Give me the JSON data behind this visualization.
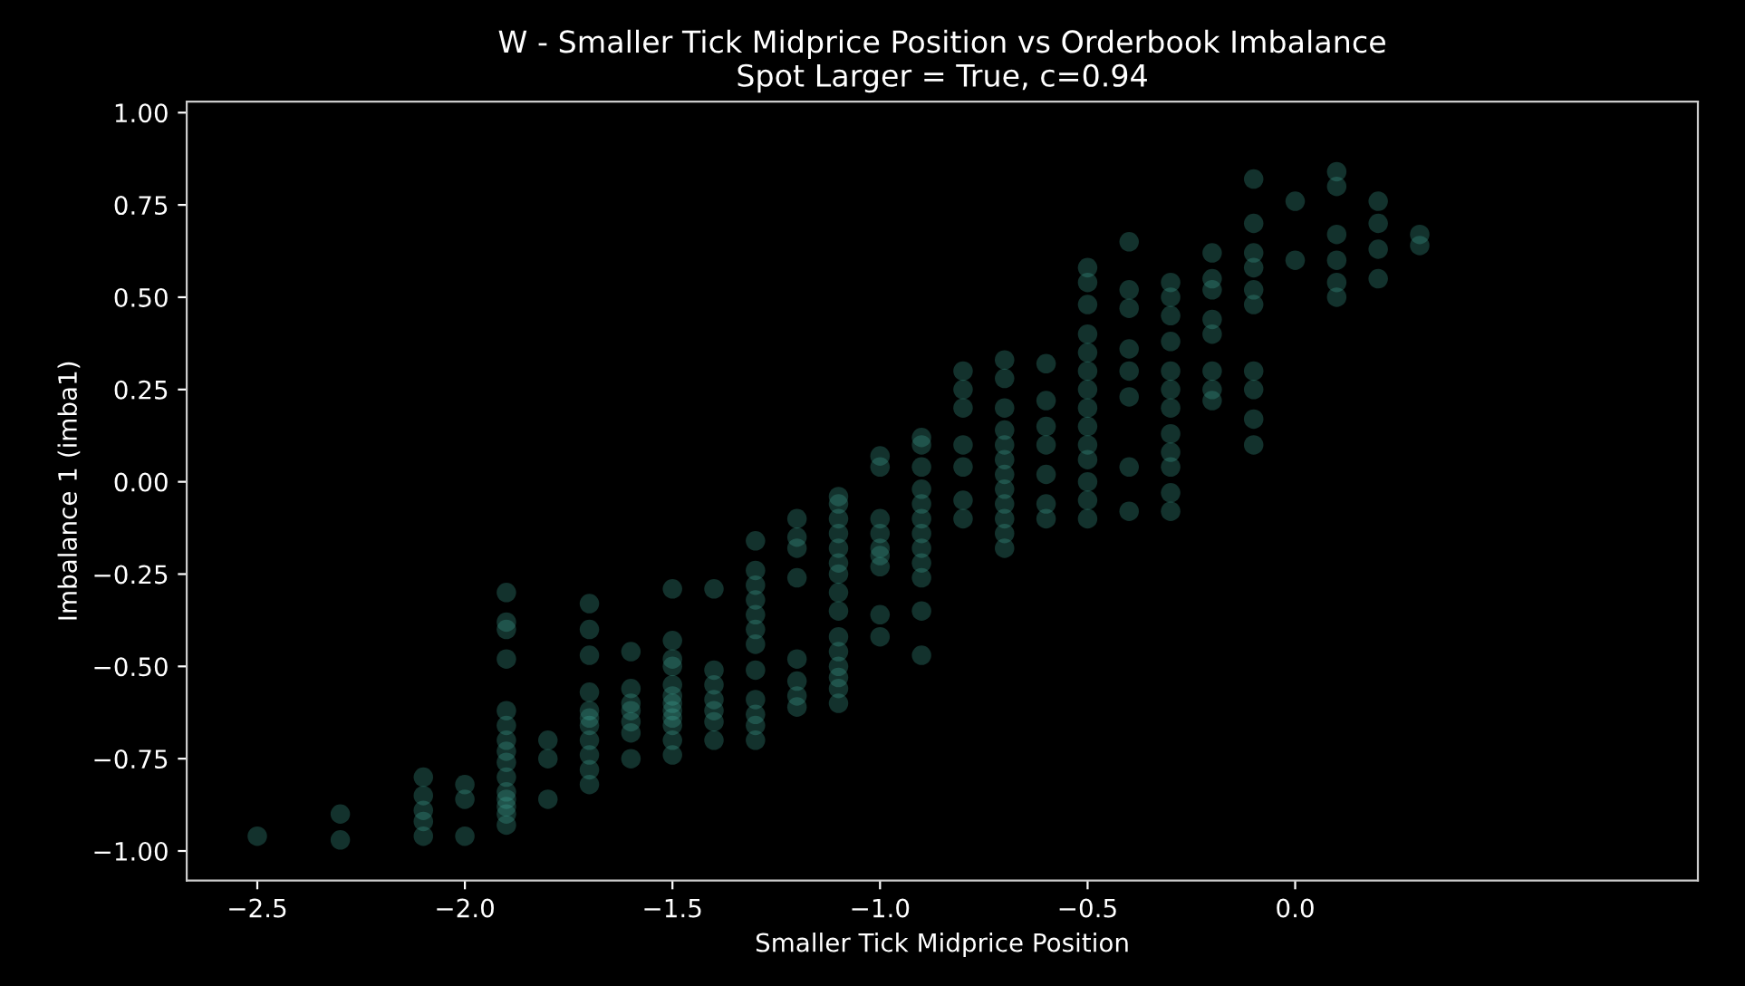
{
  "chart_data": {
    "type": "scatter",
    "title": "W - Smaller Tick Midprice Position vs Orderbook Imbalance",
    "subtitle": "Spot Larger = True, c=0.94",
    "xlabel": "Smaller Tick Midprice Position",
    "ylabel": "Imbalance 1 (imba1)",
    "xlim": [
      -2.67,
      0.97
    ],
    "ylim": [
      -1.08,
      1.03
    ],
    "xticks": [
      {
        "value": -2.5,
        "label": "−2.5"
      },
      {
        "value": -2.0,
        "label": "−2.0"
      },
      {
        "value": -1.5,
        "label": "−1.5"
      },
      {
        "value": -1.0,
        "label": "−1.0"
      },
      {
        "value": -0.5,
        "label": "−0.5"
      },
      {
        "value": 0.0,
        "label": "0.0"
      }
    ],
    "yticks": [
      {
        "value": -1.0,
        "label": "−1.00"
      },
      {
        "value": -0.75,
        "label": "−0.75"
      },
      {
        "value": -0.5,
        "label": "−0.50"
      },
      {
        "value": -0.25,
        "label": "−0.25"
      },
      {
        "value": 0.0,
        "label": "0.00"
      },
      {
        "value": 0.25,
        "label": "0.25"
      },
      {
        "value": 0.5,
        "label": "0.50"
      },
      {
        "value": 0.75,
        "label": "0.75"
      },
      {
        "value": 1.0,
        "label": "1.00"
      }
    ],
    "grid": false,
    "legend": false,
    "marker": "circle",
    "series": [
      {
        "color": "#3fa796",
        "x": [
          -2.5,
          -2.3,
          -2.3,
          -2.1,
          -2.1,
          -2.1,
          -2.1,
          -2.1,
          -2.0,
          -2.0,
          -2.0,
          -1.9,
          -1.9,
          -1.9,
          -1.9,
          -1.9,
          -1.9,
          -1.9,
          -1.9,
          -1.9,
          -1.9,
          -1.9,
          -1.9,
          -1.9,
          -1.9,
          -1.9,
          -1.8,
          -1.8,
          -1.8,
          -1.7,
          -1.7,
          -1.7,
          -1.7,
          -1.7,
          -1.7,
          -1.7,
          -1.7,
          -1.7,
          -1.7,
          -1.7,
          -1.6,
          -1.6,
          -1.6,
          -1.6,
          -1.6,
          -1.6,
          -1.6,
          -1.5,
          -1.5,
          -1.5,
          -1.5,
          -1.5,
          -1.5,
          -1.5,
          -1.5,
          -1.5,
          -1.5,
          -1.5,
          -1.5,
          -1.4,
          -1.4,
          -1.4,
          -1.4,
          -1.4,
          -1.4,
          -1.4,
          -1.3,
          -1.3,
          -1.3,
          -1.3,
          -1.3,
          -1.3,
          -1.3,
          -1.3,
          -1.3,
          -1.3,
          -1.3,
          -1.3,
          -1.2,
          -1.2,
          -1.2,
          -1.2,
          -1.2,
          -1.2,
          -1.2,
          -1.2,
          -1.1,
          -1.1,
          -1.1,
          -1.1,
          -1.1,
          -1.1,
          -1.1,
          -1.1,
          -1.1,
          -1.1,
          -1.1,
          -1.1,
          -1.1,
          -1.1,
          -1.1,
          -1.0,
          -1.0,
          -1.0,
          -1.0,
          -1.0,
          -1.0,
          -1.0,
          -1.0,
          -1.0,
          -0.9,
          -0.9,
          -0.9,
          -0.9,
          -0.9,
          -0.9,
          -0.9,
          -0.9,
          -0.9,
          -0.9,
          -0.9,
          -0.9,
          -0.8,
          -0.8,
          -0.8,
          -0.8,
          -0.8,
          -0.8,
          -0.8,
          -0.7,
          -0.7,
          -0.7,
          -0.7,
          -0.7,
          -0.7,
          -0.7,
          -0.7,
          -0.7,
          -0.7,
          -0.7,
          -0.7,
          -0.6,
          -0.6,
          -0.6,
          -0.6,
          -0.6,
          -0.6,
          -0.6,
          -0.5,
          -0.5,
          -0.5,
          -0.5,
          -0.5,
          -0.5,
          -0.5,
          -0.5,
          -0.5,
          -0.5,
          -0.5,
          -0.5,
          -0.5,
          -0.5,
          -0.4,
          -0.4,
          -0.4,
          -0.4,
          -0.4,
          -0.4,
          -0.4,
          -0.4,
          -0.3,
          -0.3,
          -0.3,
          -0.3,
          -0.3,
          -0.3,
          -0.3,
          -0.3,
          -0.3,
          -0.3,
          -0.3,
          -0.3,
          -0.2,
          -0.2,
          -0.2,
          -0.2,
          -0.2,
          -0.2,
          -0.2,
          -0.2,
          -0.1,
          -0.1,
          -0.1,
          -0.1,
          -0.1,
          -0.1,
          -0.1,
          -0.1,
          -0.1,
          -0.1,
          0.0,
          0.0,
          0.1,
          0.1,
          0.1,
          0.1,
          0.1,
          0.1,
          0.2,
          0.2,
          0.2,
          0.2,
          0.3,
          0.3
        ],
        "values": [
          -0.96,
          -0.9,
          -0.97,
          -0.8,
          -0.85,
          -0.89,
          -0.92,
          -0.96,
          -0.82,
          -0.86,
          -0.96,
          -0.3,
          -0.38,
          -0.4,
          -0.48,
          -0.62,
          -0.66,
          -0.7,
          -0.73,
          -0.76,
          -0.8,
          -0.84,
          -0.86,
          -0.88,
          -0.9,
          -0.93,
          -0.7,
          -0.75,
          -0.86,
          -0.33,
          -0.4,
          -0.47,
          -0.57,
          -0.62,
          -0.64,
          -0.66,
          -0.7,
          -0.74,
          -0.78,
          -0.82,
          -0.46,
          -0.56,
          -0.6,
          -0.62,
          -0.65,
          -0.68,
          -0.75,
          -0.29,
          -0.43,
          -0.48,
          -0.5,
          -0.55,
          -0.58,
          -0.6,
          -0.62,
          -0.64,
          -0.66,
          -0.7,
          -0.74,
          -0.29,
          -0.51,
          -0.55,
          -0.59,
          -0.62,
          -0.65,
          -0.7,
          -0.16,
          -0.24,
          -0.28,
          -0.32,
          -0.36,
          -0.4,
          -0.44,
          -0.51,
          -0.59,
          -0.63,
          -0.66,
          -0.7,
          -0.1,
          -0.15,
          -0.18,
          -0.26,
          -0.48,
          -0.54,
          -0.58,
          -0.61,
          -0.04,
          -0.06,
          -0.1,
          -0.14,
          -0.18,
          -0.22,
          -0.25,
          -0.3,
          -0.35,
          -0.42,
          -0.46,
          -0.5,
          -0.53,
          -0.56,
          -0.6,
          0.07,
          0.04,
          -0.1,
          -0.14,
          -0.18,
          -0.2,
          -0.23,
          -0.36,
          -0.42,
          0.12,
          0.1,
          0.04,
          -0.02,
          -0.06,
          -0.1,
          -0.14,
          -0.18,
          -0.22,
          -0.26,
          -0.35,
          -0.47,
          0.3,
          0.25,
          0.2,
          0.1,
          0.04,
          -0.05,
          -0.1,
          0.33,
          0.28,
          0.2,
          0.14,
          0.1,
          0.06,
          0.02,
          -0.02,
          -0.06,
          -0.1,
          -0.14,
          -0.18,
          0.32,
          0.22,
          0.15,
          0.1,
          0.02,
          -0.06,
          -0.1,
          0.58,
          0.54,
          0.48,
          0.4,
          0.35,
          0.3,
          0.25,
          0.2,
          0.15,
          0.1,
          0.06,
          0.0,
          -0.05,
          -0.1,
          0.65,
          0.52,
          0.47,
          0.36,
          0.3,
          0.23,
          0.04,
          -0.08,
          0.54,
          0.5,
          0.45,
          0.38,
          0.3,
          0.25,
          0.2,
          0.13,
          0.08,
          0.04,
          -0.03,
          -0.08,
          0.62,
          0.55,
          0.52,
          0.44,
          0.4,
          0.3,
          0.25,
          0.22,
          0.82,
          0.7,
          0.62,
          0.58,
          0.52,
          0.48,
          0.3,
          0.25,
          0.17,
          0.1,
          0.76,
          0.6,
          0.84,
          0.8,
          0.67,
          0.6,
          0.54,
          0.5,
          0.76,
          0.7,
          0.63,
          0.55,
          0.67,
          0.64
        ]
      }
    ]
  }
}
